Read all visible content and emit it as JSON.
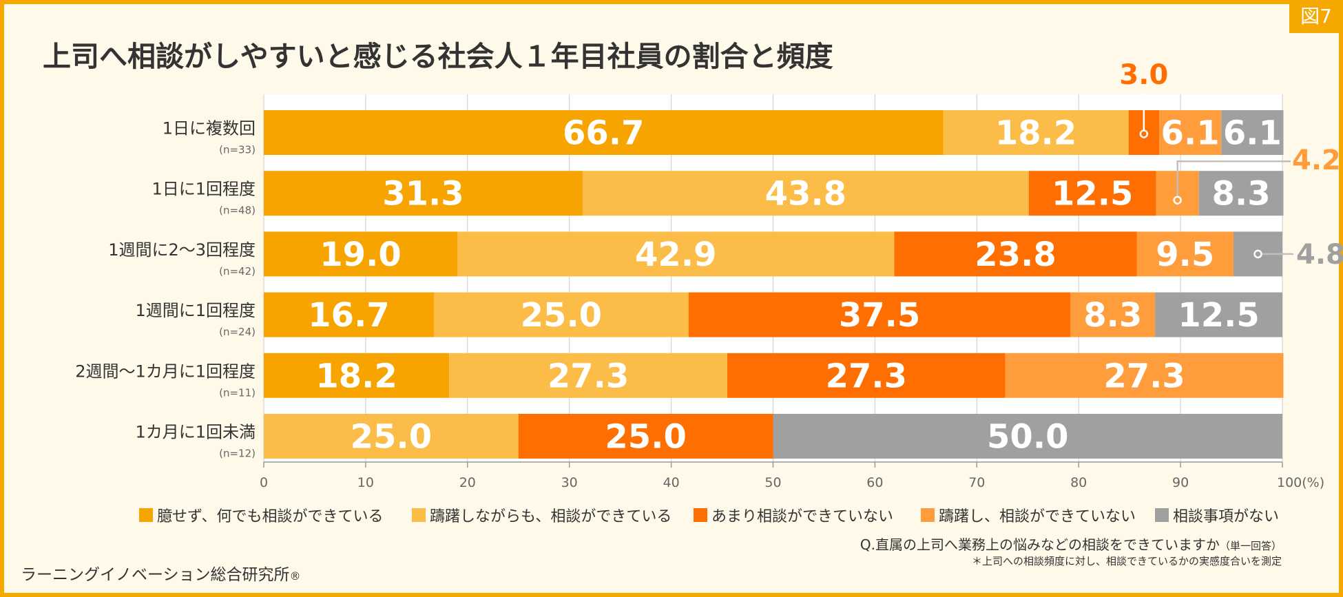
{
  "figure_label": "図7",
  "title": "上司へ相談がしやすいと感じる社会人１年目社員の割合と頻度",
  "colors": {
    "frame": "#f5a800",
    "background": "#fff9e9",
    "series": [
      "#f7a400",
      "#fbbd47",
      "#ff6e00",
      "#ff9c3c",
      "#a0a0a0"
    ]
  },
  "chart_data": {
    "type": "bar",
    "orientation": "horizontal",
    "stacked": true,
    "categories": [
      {
        "label": "1日に複数回",
        "n": "(n=33)"
      },
      {
        "label": "1日に1回程度",
        "n": "(n=48)"
      },
      {
        "label": "1週間に2〜3回程度",
        "n": "(n=42)"
      },
      {
        "label": "1週間に1回程度",
        "n": "(n=24)"
      },
      {
        "label": "2週間〜1カ月に1回程度",
        "n": "(n=11)"
      },
      {
        "label": "1カ月に1回未満",
        "n": "(n=12)"
      }
    ],
    "series": [
      {
        "name": "臆せず、何でも相談ができている",
        "values": [
          66.7,
          31.3,
          19.0,
          16.7,
          18.2,
          0
        ]
      },
      {
        "name": "躊躇しながらも、相談ができている",
        "values": [
          18.2,
          43.8,
          42.9,
          25.0,
          27.3,
          25.0
        ]
      },
      {
        "name": "あまり相談ができていない",
        "values": [
          3.0,
          12.5,
          23.8,
          37.5,
          27.3,
          25.0
        ]
      },
      {
        "name": "躊躇し、相談ができていない",
        "values": [
          6.1,
          4.2,
          9.5,
          8.3,
          27.3,
          0
        ]
      },
      {
        "name": "相談事項がない",
        "values": [
          6.1,
          8.3,
          4.8,
          12.5,
          0,
          50.0
        ]
      }
    ],
    "xlim": [
      0,
      100
    ],
    "xticks": [
      "0",
      "10",
      "20",
      "30",
      "40",
      "50",
      "60",
      "70",
      "80",
      "90",
      "100(%)"
    ],
    "grid": true,
    "legend_position": "bottom",
    "callouts": [
      {
        "row": 0,
        "series": 2,
        "label": "3.0"
      },
      {
        "row": 1,
        "series": 3,
        "label": "4.2"
      },
      {
        "row": 2,
        "series": 4,
        "label": "4.8"
      }
    ]
  },
  "question": "Q.直属の上司へ業務上の悩みなどの相談をできていますか",
  "question_note": "（単一回答）",
  "footnote": "＊上司への相談頻度に対し、相談できているかの実感度合いを測定",
  "brand": "ラーニングイノベーション総合研究所",
  "brand_mark": "®"
}
